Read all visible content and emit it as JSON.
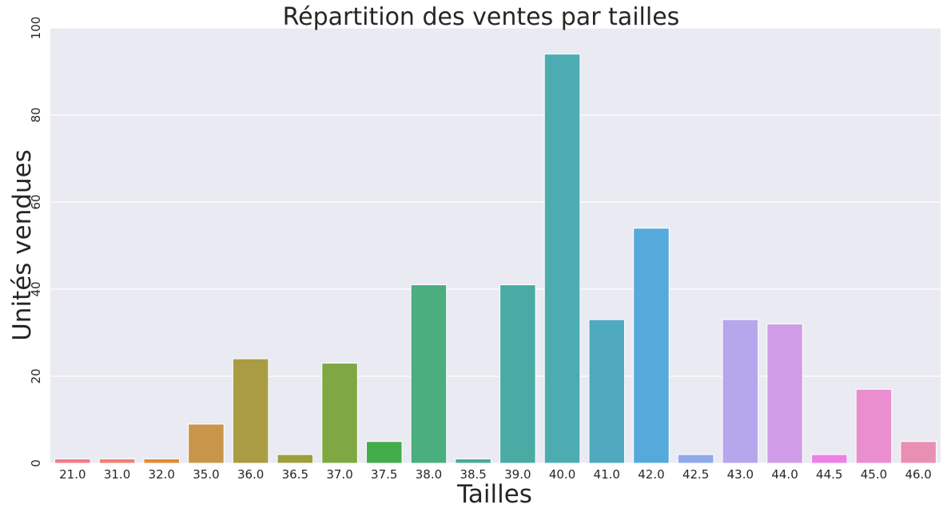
{
  "chart_data": {
    "type": "bar",
    "title": "Répartition des ventes par tailles",
    "xlabel": "Tailles",
    "ylabel": "Unités vendues",
    "categories": [
      "21.0",
      "31.0",
      "32.0",
      "35.0",
      "36.0",
      "36.5",
      "37.0",
      "37.5",
      "38.0",
      "38.5",
      "39.0",
      "40.0",
      "41.0",
      "42.0",
      "42.5",
      "43.0",
      "44.0",
      "44.5",
      "45.0",
      "46.0"
    ],
    "values": [
      1,
      1,
      1,
      9,
      24,
      2,
      23,
      5,
      41,
      1,
      41,
      94,
      33,
      54,
      2,
      33,
      32,
      2,
      17,
      5
    ],
    "colors": [
      "#f27a8a",
      "#f07f74",
      "#e18b33",
      "#c8964a",
      "#aa9c43",
      "#9ca03c",
      "#7fa842",
      "#43ad4b",
      "#4aae7e",
      "#48ab95",
      "#4aaba5",
      "#4cacb2",
      "#4faac0",
      "#56aadb",
      "#8fa9ea",
      "#b6a6ec",
      "#d09ce8",
      "#ec82e6",
      "#ea8ecf",
      "#ea8fb4"
    ],
    "yticks": [
      0,
      20,
      40,
      60,
      80,
      100
    ],
    "ylim": [
      0,
      100
    ],
    "grid": true,
    "legend": "none"
  }
}
